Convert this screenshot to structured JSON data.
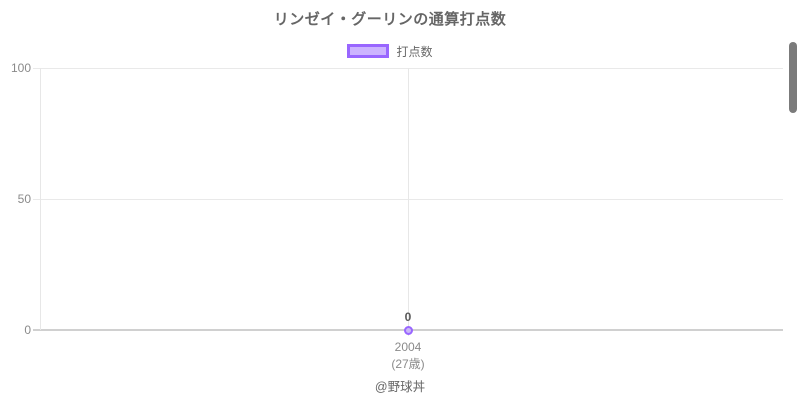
{
  "title": "リンゼイ・グーリンの通算打点数",
  "legend": {
    "label": "打点数"
  },
  "y_axis": {
    "ticks": [
      "100",
      "50",
      "0"
    ]
  },
  "x_axis": {
    "year": "2004",
    "age": "(27歳)"
  },
  "point": {
    "value_label": "0"
  },
  "watermark": "@野球丼",
  "colors": {
    "series_border": "#9966ff",
    "series_fill": "#ccb3ff",
    "gridline": "#e9e9e9",
    "zero_line": "#d0d0d0",
    "text_main": "#666666",
    "text_tick": "#8a8a8a",
    "scrollbar": "#7b7b7b"
  },
  "chart_data": {
    "type": "line",
    "title": "リンゼイ・グーリンの通算打点数",
    "categories": [
      "2004"
    ],
    "category_sublabels": [
      "(27歳)"
    ],
    "series": [
      {
        "name": "打点数",
        "values": [
          0
        ]
      }
    ],
    "point_labels": [
      "0"
    ],
    "xlabel": "",
    "ylabel": "",
    "ylim": [
      0,
      100
    ],
    "yticks": [
      0,
      50,
      100
    ],
    "grid": true,
    "legend_position": "top",
    "annotations": [
      "@野球丼"
    ]
  }
}
